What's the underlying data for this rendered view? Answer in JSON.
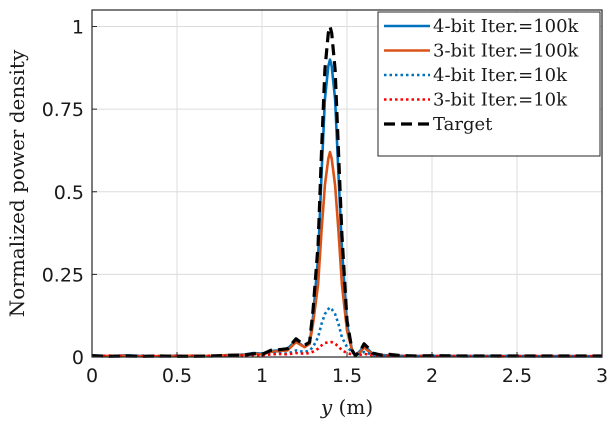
{
  "chart_data": {
    "type": "line",
    "xlabel": "y (m)",
    "xlabel_var": "y",
    "xlabel_unit": " (m)",
    "ylabel": "Normalized power density",
    "xlim": [
      0,
      3
    ],
    "ylim": [
      0,
      1.05
    ],
    "grid": true,
    "legend_position": "top-right",
    "x_ticks": [
      0,
      0.5,
      1,
      1.5,
      2,
      2.5,
      3
    ],
    "x_tick_labels": [
      "0",
      "0.5",
      "1",
      "1.5",
      "2",
      "2.5",
      "3"
    ],
    "y_ticks": [
      0,
      0.25,
      0.5,
      0.75,
      1
    ],
    "y_tick_labels": [
      "0",
      "0.25",
      "0.5",
      "0.75",
      "1"
    ],
    "x": [
      0,
      0.1,
      0.2,
      0.3,
      0.4,
      0.5,
      0.6,
      0.7,
      0.8,
      0.9,
      0.95,
      1.0,
      1.05,
      1.1,
      1.15,
      1.2,
      1.25,
      1.28,
      1.3,
      1.33,
      1.35,
      1.37,
      1.39,
      1.4,
      1.41,
      1.43,
      1.45,
      1.47,
      1.5,
      1.53,
      1.55,
      1.58,
      1.6,
      1.62,
      1.65,
      1.7,
      1.75,
      1.8,
      1.85,
      1.9,
      2.0,
      2.2,
      2.4,
      2.6,
      2.8,
      3.0
    ],
    "series": [
      {
        "name": "4-bit Iter.=100k",
        "color": "#0072BD",
        "style": "solid",
        "values": [
          0.005,
          0.002,
          0.005,
          0.003,
          0.002,
          0.004,
          0.003,
          0.002,
          0.005,
          0.008,
          0.012,
          0.01,
          0.018,
          0.02,
          0.025,
          0.05,
          0.03,
          0.04,
          0.12,
          0.3,
          0.55,
          0.78,
          0.88,
          0.9,
          0.88,
          0.78,
          0.55,
          0.33,
          0.1,
          0.02,
          0.005,
          0.02,
          0.035,
          0.025,
          0.01,
          0.006,
          0.005,
          0.004,
          0.002,
          0.003,
          0.003,
          0.003,
          0.003,
          0.002,
          0.002,
          0.002
        ]
      },
      {
        "name": "3-bit Iter.=100k",
        "color": "#D95319",
        "style": "solid",
        "values": [
          0.004,
          0.003,
          0.004,
          0.002,
          0.003,
          0.003,
          0.004,
          0.003,
          0.006,
          0.007,
          0.01,
          0.008,
          0.015,
          0.018,
          0.02,
          0.045,
          0.03,
          0.04,
          0.1,
          0.22,
          0.38,
          0.52,
          0.6,
          0.62,
          0.6,
          0.52,
          0.38,
          0.22,
          0.08,
          0.02,
          0.006,
          0.015,
          0.03,
          0.02,
          0.01,
          0.005,
          0.004,
          0.004,
          0.003,
          0.003,
          0.002,
          0.003,
          0.002,
          0.003,
          0.002,
          0.003
        ]
      },
      {
        "name": "4-bit Iter.=10k",
        "color": "#0072BD",
        "style": "dotted",
        "values": [
          0.004,
          0.003,
          0.003,
          0.004,
          0.002,
          0.003,
          0.004,
          0.003,
          0.004,
          0.006,
          0.006,
          0.006,
          0.01,
          0.012,
          0.01,
          0.02,
          0.015,
          0.02,
          0.03,
          0.06,
          0.1,
          0.13,
          0.145,
          0.15,
          0.145,
          0.13,
          0.1,
          0.06,
          0.03,
          0.015,
          0.006,
          0.01,
          0.015,
          0.012,
          0.006,
          0.004,
          0.004,
          0.003,
          0.003,
          0.002,
          0.003,
          0.002,
          0.003,
          0.002,
          0.003,
          0.002
        ]
      },
      {
        "name": "3-bit Iter.=10k",
        "color": "#FF0000",
        "style": "dotted",
        "values": [
          0.003,
          0.004,
          0.003,
          0.003,
          0.003,
          0.004,
          0.003,
          0.004,
          0.003,
          0.005,
          0.006,
          0.005,
          0.008,
          0.009,
          0.008,
          0.012,
          0.01,
          0.012,
          0.016,
          0.025,
          0.035,
          0.042,
          0.045,
          0.045,
          0.045,
          0.04,
          0.032,
          0.02,
          0.012,
          0.008,
          0.005,
          0.007,
          0.01,
          0.008,
          0.005,
          0.004,
          0.003,
          0.003,
          0.003,
          0.003,
          0.003,
          0.003,
          0.002,
          0.003,
          0.003,
          0.002
        ]
      },
      {
        "name": "Target",
        "color": "#000000",
        "style": "dashed",
        "values": [
          0.004,
          0.002,
          0.003,
          0.002,
          0.003,
          0.002,
          0.002,
          0.003,
          0.005,
          0.006,
          0.01,
          0.008,
          0.02,
          0.022,
          0.025,
          0.055,
          0.035,
          0.045,
          0.14,
          0.34,
          0.62,
          0.87,
          0.98,
          1.0,
          0.98,
          0.87,
          0.62,
          0.37,
          0.11,
          0.02,
          0.004,
          0.02,
          0.04,
          0.03,
          0.012,
          0.006,
          0.008,
          0.005,
          0.004,
          0.003,
          0.004,
          0.003,
          0.003,
          0.003,
          0.003,
          0.003
        ]
      }
    ]
  }
}
